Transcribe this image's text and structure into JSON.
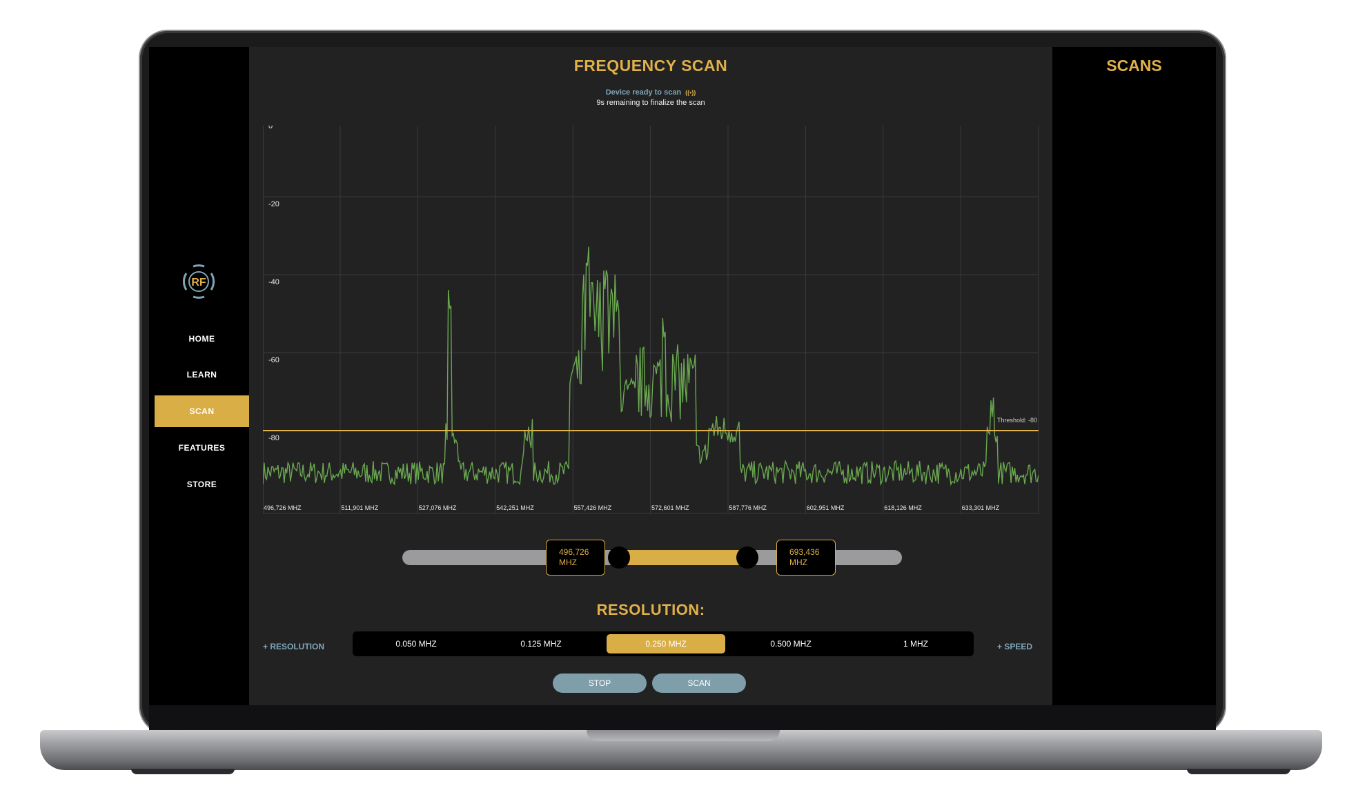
{
  "nav": {
    "logo_text": "RF",
    "items": [
      {
        "label": "HOME",
        "active": false
      },
      {
        "label": "LEARN",
        "active": false
      },
      {
        "label": "SCAN",
        "active": true
      },
      {
        "label": "FEATURES",
        "active": false
      },
      {
        "label": "STORE",
        "active": false
      }
    ]
  },
  "main": {
    "title": "FREQUENCY SCAN",
    "status": "Device ready to scan",
    "status_icon": "antenna-signal-icon",
    "substatus": "9s remaining to finalize the scan"
  },
  "chart_data": {
    "type": "line",
    "y_ticks": [
      "0",
      "-20",
      "-40",
      "-60",
      "-80"
    ],
    "ylim": [
      -100,
      0
    ],
    "x_ticks": [
      "496,726 MHZ",
      "511,901 MHZ",
      "527,076 MHZ",
      "542,251 MHZ",
      "557,426 MHZ",
      "572,601 MHZ",
      "587,776 MHZ",
      "602,951 MHZ",
      "618,126 MHZ",
      "633,301 MHZ"
    ],
    "xlim": [
      496.726,
      647.0
    ],
    "threshold": -80,
    "threshold_label": "Threshold: -80",
    "series_color": "#6aa84f",
    "threshold_color": "#e0b049",
    "peaks": [
      {
        "x": 533.0,
        "y": -49
      },
      {
        "x": 559.5,
        "y": -38
      },
      {
        "x": 563.0,
        "y": -42
      },
      {
        "x": 574.5,
        "y": -56
      },
      {
        "x": 638.0,
        "y": -75
      }
    ],
    "noise_floor": -89
  },
  "range": {
    "min_value": "496,726",
    "max_value": "693,436",
    "unit": "MHZ"
  },
  "resolution": {
    "title": "RESOLUTION:",
    "left_label": "+ RESOLUTION",
    "right_label": "+ SPEED",
    "options": [
      {
        "label": "0.050 MHZ",
        "active": false
      },
      {
        "label": "0.125 MHZ",
        "active": false
      },
      {
        "label": "0.250 MHZ",
        "active": true
      },
      {
        "label": "0.500 MHZ",
        "active": false
      },
      {
        "label": "1 MHZ",
        "active": false
      }
    ]
  },
  "buttons": {
    "stop": "STOP",
    "scan": "SCAN"
  },
  "right_panel": {
    "title": "SCANS"
  },
  "colors": {
    "accent": "#d9ae47",
    "panel": "#222223",
    "muted_blue": "#7e9ea9"
  }
}
